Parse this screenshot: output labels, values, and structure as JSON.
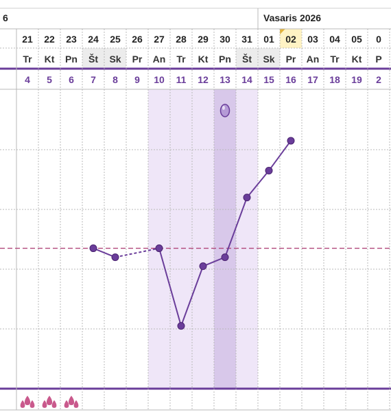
{
  "header": {
    "prev_month_fragment": "6",
    "month_title": "Vasaris 2026"
  },
  "colors": {
    "accent": "#6a3d9a",
    "fertile_band": "#efe6f8",
    "ovulation_band": "#d8c8ea",
    "weekend_cell": "#ececec",
    "today_cell": "#fff3c4",
    "coverline": "#b0457a",
    "grid": "#b9b9b9",
    "period_drop": "#c03c78"
  },
  "chart_data": {
    "type": "line",
    "days": [
      {
        "date": "21",
        "weekday": "Tr",
        "cycle_day": "4"
      },
      {
        "date": "22",
        "weekday": "Kt",
        "cycle_day": "5"
      },
      {
        "date": "23",
        "weekday": "Pn",
        "cycle_day": "6"
      },
      {
        "date": "24",
        "weekday": "Št",
        "cycle_day": "7"
      },
      {
        "date": "25",
        "weekday": "Sk",
        "cycle_day": "8"
      },
      {
        "date": "26",
        "weekday": "Pr",
        "cycle_day": "9"
      },
      {
        "date": "27",
        "weekday": "An",
        "cycle_day": "10"
      },
      {
        "date": "28",
        "weekday": "Tr",
        "cycle_day": "11"
      },
      {
        "date": "29",
        "weekday": "Kt",
        "cycle_day": "12"
      },
      {
        "date": "30",
        "weekday": "Pn",
        "cycle_day": "13"
      },
      {
        "date": "31",
        "weekday": "Št",
        "cycle_day": "14"
      },
      {
        "date": "01",
        "weekday": "Sk",
        "cycle_day": "15"
      },
      {
        "date": "02",
        "weekday": "Pr",
        "cycle_day": "16"
      },
      {
        "date": "03",
        "weekday": "An",
        "cycle_day": "17"
      },
      {
        "date": "04",
        "weekday": "Tr",
        "cycle_day": "18"
      },
      {
        "date": "05",
        "weekday": "Kt",
        "cycle_day": "19"
      },
      {
        "date": "0",
        "weekday": "P",
        "cycle_day": "2"
      }
    ],
    "weekend_days": [
      3,
      4,
      10,
      11
    ],
    "today_index": 12,
    "fertile_window": [
      6,
      10
    ],
    "ovulation_day": 9,
    "ovulation_marker_day": 9,
    "period_days": [
      0,
      1,
      2
    ],
    "temperature_unit_note": "relative levels (no printed axis)",
    "y_levels": 5,
    "coverline": 2.35,
    "points": [
      {
        "day": 3,
        "value": 2.35
      },
      {
        "day": 4,
        "value": 2.2
      },
      {
        "day": 6,
        "value": 2.35
      },
      {
        "day": 7,
        "value": 1.05
      },
      {
        "day": 8,
        "value": 2.05
      },
      {
        "day": 9,
        "value": 2.2
      },
      {
        "day": 10,
        "value": 3.2
      },
      {
        "day": 11,
        "value": 3.65
      },
      {
        "day": 12,
        "value": 4.15
      }
    ],
    "dashed_segments": [
      [
        4,
        6
      ]
    ]
  }
}
